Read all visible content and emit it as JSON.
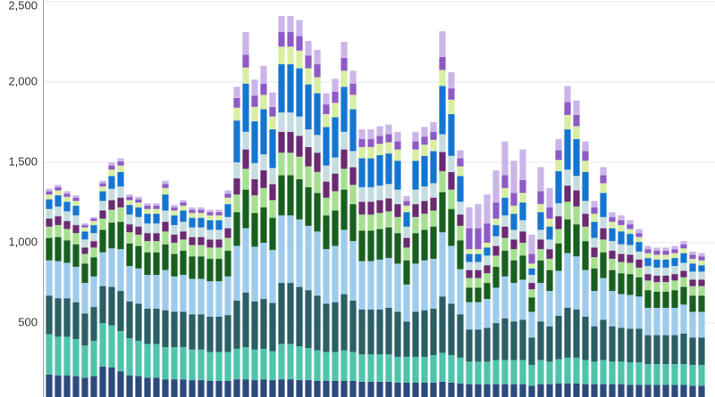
{
  "chart_data": {
    "type": "stacked-bar",
    "categories": [
      null,
      null,
      null,
      null,
      null,
      null,
      null,
      null,
      null,
      null,
      null,
      null,
      null,
      null,
      null,
      null,
      null,
      null,
      null,
      null,
      null,
      null,
      null,
      null,
      null,
      null,
      null,
      null,
      null,
      null,
      null,
      null,
      null,
      null,
      null,
      null,
      null,
      null,
      null,
      null,
      null,
      null,
      null,
      null,
      null,
      null,
      null,
      null,
      null,
      null,
      null,
      null,
      null,
      null,
      null,
      null,
      null,
      null,
      null,
      null,
      null,
      null,
      null,
      null,
      null,
      null,
      null,
      null,
      null,
      null,
      null,
      null,
      null,
      null
    ],
    "series": [
      {
        "color": "#2c4a7c",
        "values": [
          180,
          175,
          175,
          170,
          160,
          170,
          230,
          225,
          200,
          175,
          170,
          160,
          160,
          150,
          150,
          150,
          145,
          145,
          140,
          140,
          140,
          150,
          150,
          145,
          150,
          145,
          150,
          150,
          145,
          145,
          140,
          140,
          140,
          140,
          140,
          135,
          135,
          135,
          135,
          130,
          130,
          130,
          130,
          130,
          135,
          130,
          125,
          120,
          120,
          120,
          120,
          120,
          120,
          120,
          110,
          120,
          120,
          125,
          125,
          125,
          120,
          120,
          120,
          120,
          120,
          115,
          115,
          115,
          115,
          115,
          115,
          115,
          110,
          110
        ]
      },
      {
        "color": "#4fc4ad",
        "values": [
          250,
          240,
          240,
          230,
          200,
          220,
          270,
          260,
          250,
          230,
          220,
          210,
          210,
          200,
          200,
          200,
          190,
          190,
          180,
          180,
          180,
          190,
          200,
          190,
          190,
          180,
          220,
          220,
          210,
          200,
          190,
          180,
          180,
          190,
          180,
          170,
          170,
          170,
          170,
          160,
          160,
          160,
          160,
          170,
          180,
          170,
          160,
          140,
          140,
          140,
          150,
          150,
          150,
          150,
          130,
          150,
          140,
          150,
          160,
          160,
          150,
          140,
          150,
          140,
          140,
          140,
          140,
          130,
          130,
          130,
          130,
          130,
          130,
          130
        ]
      },
      {
        "color": "#2a5f66",
        "values": [
          240,
          240,
          240,
          230,
          200,
          210,
          230,
          240,
          250,
          230,
          230,
          220,
          220,
          230,
          220,
          220,
          220,
          220,
          220,
          220,
          230,
          300,
          340,
          300,
          310,
          300,
          380,
          380,
          370,
          360,
          340,
          300,
          310,
          350,
          320,
          280,
          280,
          280,
          290,
          280,
          220,
          280,
          290,
          290,
          350,
          320,
          270,
          200,
          200,
          210,
          230,
          260,
          240,
          250,
          170,
          240,
          220,
          270,
          310,
          300,
          270,
          220,
          250,
          220,
          210,
          210,
          210,
          180,
          180,
          180,
          180,
          190,
          170,
          170
        ]
      },
      {
        "color": "#9ecbec",
        "values": [
          220,
          230,
          220,
          220,
          190,
          190,
          210,
          240,
          260,
          220,
          220,
          210,
          210,
          250,
          220,
          230,
          220,
          220,
          220,
          220,
          240,
          340,
          400,
          340,
          350,
          330,
          420,
          420,
          420,
          400,
          400,
          340,
          350,
          400,
          370,
          300,
          300,
          310,
          310,
          300,
          230,
          300,
          310,
          310,
          400,
          360,
          280,
          170,
          170,
          180,
          220,
          260,
          240,
          250,
          160,
          240,
          220,
          280,
          340,
          330,
          290,
          220,
          260,
          220,
          210,
          210,
          200,
          170,
          170,
          170,
          170,
          180,
          160,
          160
        ]
      },
      {
        "color": "#17601f",
        "values": [
          140,
          150,
          140,
          140,
          120,
          120,
          140,
          160,
          170,
          140,
          140,
          140,
          140,
          160,
          140,
          150,
          140,
          140,
          140,
          140,
          160,
          210,
          240,
          210,
          220,
          200,
          250,
          250,
          250,
          240,
          240,
          210,
          220,
          250,
          230,
          190,
          190,
          190,
          190,
          190,
          150,
          190,
          190,
          200,
          250,
          230,
          180,
          90,
          90,
          100,
          130,
          160,
          140,
          150,
          90,
          140,
          130,
          170,
          210,
          200,
          180,
          140,
          160,
          130,
          130,
          130,
          120,
          110,
          100,
          100,
          110,
          110,
          100,
          100
        ]
      },
      {
        "color": "#a6e08f",
        "values": [
          70,
          75,
          70,
          70,
          60,
          60,
          70,
          80,
          90,
          70,
          70,
          70,
          70,
          80,
          70,
          70,
          70,
          70,
          70,
          70,
          80,
          110,
          130,
          110,
          120,
          110,
          140,
          140,
          140,
          130,
          130,
          110,
          120,
          130,
          120,
          100,
          100,
          100,
          100,
          100,
          80,
          100,
          100,
          100,
          130,
          120,
          90,
          60,
          60,
          60,
          70,
          80,
          70,
          80,
          50,
          70,
          70,
          90,
          110,
          110,
          90,
          70,
          80,
          70,
          70,
          70,
          60,
          60,
          60,
          60,
          60,
          60,
          60,
          60
        ]
      },
      {
        "color": "#6b2a72",
        "values": [
          50,
          55,
          50,
          50,
          40,
          40,
          50,
          60,
          60,
          50,
          50,
          50,
          50,
          60,
          50,
          50,
          50,
          50,
          50,
          50,
          60,
          100,
          120,
          100,
          110,
          100,
          130,
          130,
          130,
          120,
          120,
          100,
          110,
          120,
          110,
          80,
          80,
          80,
          80,
          80,
          60,
          80,
          80,
          80,
          120,
          110,
          70,
          50,
          50,
          50,
          60,
          70,
          60,
          70,
          40,
          60,
          60,
          80,
          100,
          100,
          80,
          60,
          70,
          50,
          50,
          50,
          50,
          40,
          40,
          40,
          40,
          40,
          40,
          40
        ]
      },
      {
        "color": "#c5dde0",
        "values": [
          60,
          60,
          60,
          60,
          50,
          50,
          60,
          70,
          70,
          60,
          60,
          60,
          60,
          70,
          60,
          60,
          60,
          60,
          60,
          60,
          70,
          100,
          110,
          100,
          100,
          100,
          120,
          120,
          120,
          110,
          110,
          100,
          100,
          110,
          100,
          90,
          90,
          90,
          90,
          90,
          70,
          90,
          90,
          90,
          110,
          100,
          80,
          50,
          50,
          60,
          60,
          70,
          60,
          70,
          50,
          60,
          60,
          80,
          100,
          90,
          80,
          60,
          70,
          60,
          60,
          60,
          50,
          50,
          50,
          50,
          50,
          50,
          50,
          50
        ]
      },
      {
        "color": "#1576d2",
        "values": [
          60,
          70,
          60,
          60,
          50,
          50,
          60,
          80,
          90,
          60,
          60,
          60,
          60,
          100,
          60,
          70,
          60,
          60,
          60,
          60,
          80,
          260,
          300,
          260,
          280,
          240,
          300,
          300,
          300,
          280,
          260,
          240,
          250,
          280,
          260,
          180,
          180,
          190,
          190,
          180,
          90,
          180,
          190,
          200,
          300,
          260,
          160,
          50,
          50,
          50,
          70,
          110,
          100,
          110,
          40,
          110,
          80,
          200,
          250,
          230,
          180,
          100,
          150,
          80,
          80,
          70,
          60,
          50,
          50,
          50,
          50,
          60,
          50,
          40
        ]
      },
      {
        "color": "#d8eea2",
        "values": [
          30,
          30,
          30,
          30,
          25,
          25,
          30,
          40,
          40,
          30,
          30,
          30,
          30,
          40,
          30,
          30,
          30,
          30,
          30,
          30,
          40,
          80,
          100,
          90,
          90,
          80,
          110,
          110,
          110,
          100,
          100,
          80,
          90,
          100,
          90,
          70,
          70,
          70,
          70,
          70,
          40,
          70,
          70,
          70,
          100,
          90,
          60,
          30,
          30,
          30,
          40,
          60,
          50,
          60,
          30,
          50,
          50,
          70,
          90,
          80,
          70,
          50,
          60,
          40,
          40,
          30,
          30,
          30,
          30,
          30,
          30,
          30,
          30,
          30
        ]
      },
      {
        "color": "#8e5bc6",
        "values": [
          20,
          20,
          20,
          20,
          15,
          15,
          20,
          25,
          25,
          20,
          20,
          20,
          20,
          25,
          20,
          20,
          20,
          20,
          20,
          20,
          25,
          60,
          80,
          70,
          70,
          60,
          90,
          90,
          90,
          80,
          80,
          60,
          70,
          80,
          70,
          50,
          50,
          50,
          50,
          50,
          30,
          50,
          50,
          50,
          80,
          70,
          50,
          130,
          130,
          120,
          100,
          80,
          80,
          80,
          60,
          80,
          70,
          60,
          80,
          70,
          60,
          40,
          50,
          30,
          30,
          30,
          25,
          25,
          25,
          25,
          25,
          25,
          25,
          25
        ]
      },
      {
        "color": "#cbb5e8",
        "values": [
          15,
          15,
          15,
          15,
          10,
          10,
          15,
          20,
          20,
          15,
          15,
          15,
          15,
          20,
          15,
          15,
          15,
          15,
          15,
          15,
          20,
          70,
          140,
          100,
          110,
          90,
          100,
          100,
          100,
          90,
          90,
          70,
          80,
          100,
          80,
          60,
          60,
          60,
          60,
          60,
          30,
          60,
          60,
          60,
          160,
          100,
          50,
          130,
          150,
          180,
          200,
          210,
          200,
          190,
          120,
          150,
          120,
          70,
          100,
          90,
          60,
          40,
          50,
          30,
          30,
          25,
          25,
          20,
          20,
          20,
          20,
          20,
          20,
          20
        ]
      }
    ],
    "ylim": [
      40,
      2510
    ],
    "yticks": [
      {
        "value": 500,
        "label": "500"
      },
      {
        "value": 1000,
        "label": "1,000"
      },
      {
        "value": 1500,
        "label": "1,500"
      },
      {
        "value": 2000,
        "label": "2,000"
      },
      {
        "value": 2500,
        "label": "2,500"
      }
    ],
    "grid": true
  }
}
